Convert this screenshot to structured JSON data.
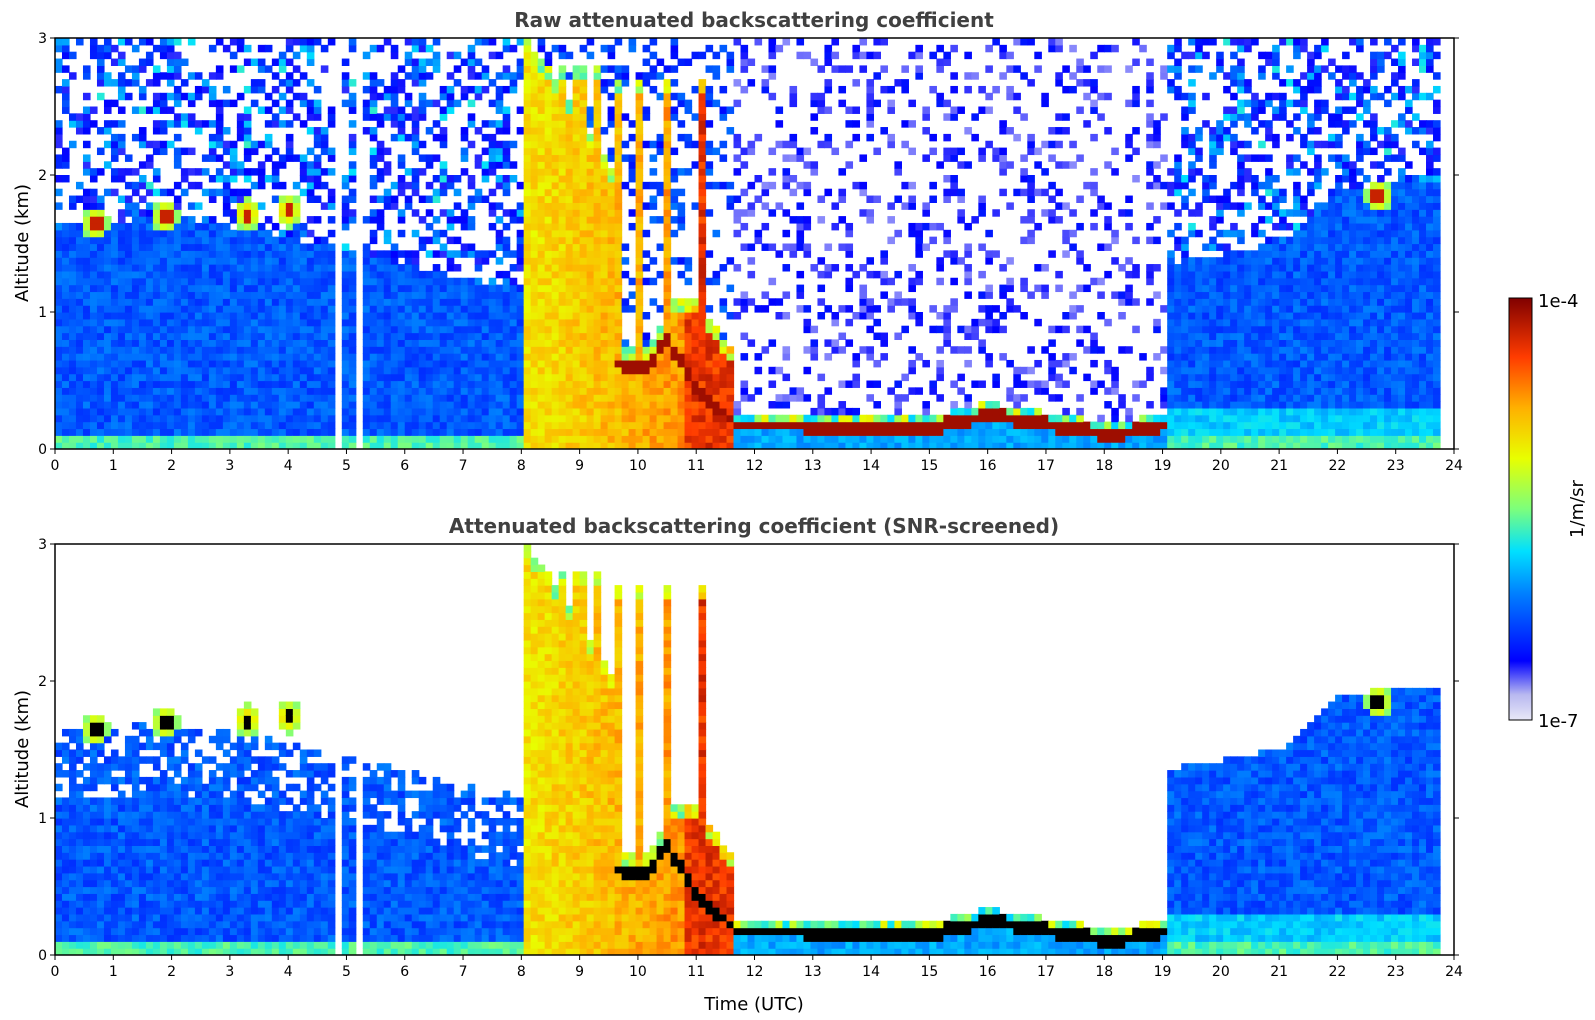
{
  "chart_data": [
    {
      "type": "heatmap",
      "title": "Raw attenuated backscattering coefficient",
      "xlabel": "",
      "ylabel": "Altitude (km)",
      "xlim": [
        0,
        24
      ],
      "ylim": [
        0,
        3
      ],
      "x_ticks": [
        "0",
        "1",
        "2",
        "3",
        "4",
        "5",
        "6",
        "7",
        "8",
        "9",
        "10",
        "11",
        "12",
        "13",
        "14",
        "15",
        "16",
        "17",
        "18",
        "19",
        "20",
        "21",
        "22",
        "23",
        "24"
      ],
      "y_ticks": [
        "0",
        "1",
        "2",
        "3"
      ],
      "screened": false,
      "features": {
        "boundary_layer_top_km": [
          [
            0,
            1.62
          ],
          [
            2,
            1.7
          ],
          [
            4,
            1.55
          ],
          [
            8,
            1.15
          ],
          [
            19,
            1.35
          ],
          [
            21,
            1.5
          ],
          [
            22,
            1.9
          ],
          [
            23.8,
            1.95
          ]
        ],
        "surface_haze_top_km": [
          [
            0,
            0.85
          ],
          [
            4,
            0.75
          ],
          [
            8,
            0.7
          ]
        ],
        "rain_band_utc": [
          8.1,
          11.6
        ],
        "rain_band_core_utc": [
          9.6,
          11.6
        ],
        "low_cloud_base_km": [
          [
            9.7,
            0.62
          ],
          [
            10.1,
            0.58
          ],
          [
            10.5,
            0.8
          ],
          [
            11.0,
            0.45
          ],
          [
            11.7,
            0.18
          ],
          [
            15,
            0.15
          ],
          [
            16,
            0.25
          ],
          [
            17,
            0.18
          ],
          [
            18.2,
            0.1
          ],
          [
            19,
            0.18
          ]
        ],
        "cloud_clusters": [
          [
            0.7,
            1.65
          ],
          [
            1.9,
            1.7
          ],
          [
            3.3,
            1.72
          ],
          [
            4.0,
            1.74
          ],
          [
            22.7,
            1.85
          ]
        ],
        "rain_streaks_utc": [
          8.4,
          8.7,
          9.0,
          9.3,
          9.7,
          10.0,
          10.5,
          11.1
        ],
        "data_gaps_utc": [
          4.85,
          5.2,
          5.28
        ]
      }
    },
    {
      "type": "heatmap",
      "title": "Attenuated backscattering coefficient (SNR-screened)",
      "xlabel": "Time (UTC)",
      "ylabel": "Altitude (km)",
      "xlim": [
        0,
        24
      ],
      "ylim": [
        0,
        3
      ],
      "x_ticks": [
        "0",
        "1",
        "2",
        "3",
        "4",
        "5",
        "6",
        "7",
        "8",
        "9",
        "10",
        "11",
        "12",
        "13",
        "14",
        "15",
        "16",
        "17",
        "18",
        "19",
        "20",
        "21",
        "22",
        "23",
        "24"
      ],
      "y_ticks": [
        "0",
        "1",
        "2",
        "3"
      ],
      "screened": true
    }
  ],
  "colorbar": {
    "label": "1/m/sr",
    "max_label": "1e-4",
    "min_label": "1e-7",
    "log_range": [
      -7,
      -4
    ],
    "colormap": [
      "#e8e8f8",
      "#0000ff",
      "#0080ff",
      "#00e0ff",
      "#7cff7c",
      "#e8ff00",
      "#ffb000",
      "#ff3c00",
      "#800000"
    ]
  }
}
